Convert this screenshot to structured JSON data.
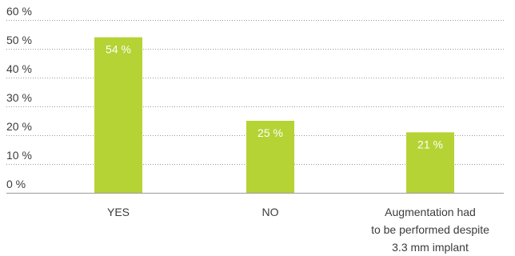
{
  "chart_data": {
    "type": "bar",
    "categories": [
      [
        "YES"
      ],
      [
        "NO"
      ],
      [
        "Augmentation had",
        "to be performed despite",
        "3.3 mm implant"
      ]
    ],
    "values": [
      54,
      25,
      21
    ],
    "data_labels": [
      "54 %",
      "25 %",
      "21 %"
    ],
    "ylim": [
      0,
      60
    ],
    "yticks": [
      0,
      10,
      20,
      30,
      40,
      50,
      60
    ],
    "ytick_labels": [
      "0 %",
      "10 %",
      "20 %",
      "30 %",
      "40 %",
      "50 %",
      "60 %"
    ],
    "title": "",
    "xlabel": "",
    "ylabel": "",
    "grid": "horizontal dotted",
    "bar_color": "#b5d334"
  }
}
